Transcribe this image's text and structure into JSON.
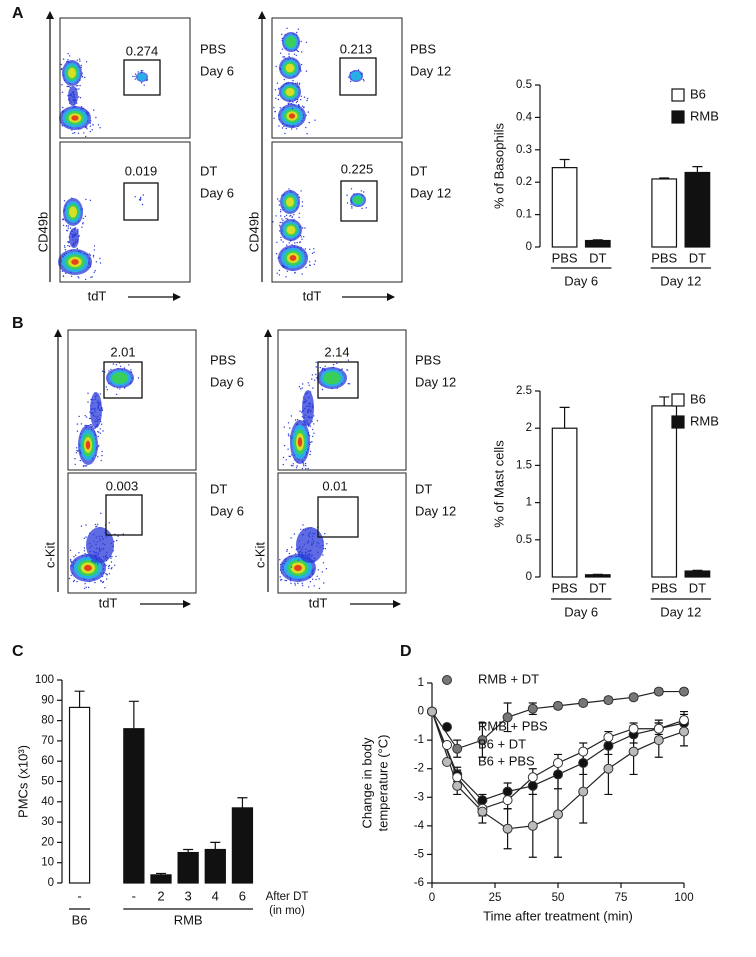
{
  "panel_labels": [
    "A",
    "B",
    "C",
    "D"
  ],
  "flow": {
    "x_label": "tdT",
    "y_labels": [
      "CD49b",
      "c-Kit"
    ],
    "plots": [
      {
        "gate": 0.274,
        "condition": "PBS",
        "day": "Day 6"
      },
      {
        "gate": 0.019,
        "condition": "DT",
        "day": "Day 6"
      },
      {
        "gate": 0.213,
        "condition": "PBS",
        "day": "Day 12"
      },
      {
        "gate": 0.225,
        "condition": "DT",
        "day": "Day 12"
      },
      {
        "gate": 2.01,
        "condition": "PBS",
        "day": "Day 6"
      },
      {
        "gate": 0.003,
        "condition": "DT",
        "day": "Day 6"
      },
      {
        "gate": 2.14,
        "condition": "PBS",
        "day": "Day 12"
      },
      {
        "gate": 0.01,
        "condition": "DT",
        "day": "Day 12"
      }
    ]
  },
  "chart_data": [
    {
      "type": "bar",
      "ylabel": "% of Basophils",
      "categories": [
        "PBS",
        "DT",
        null,
        "PBS",
        "DT"
      ],
      "groups": [
        "Day 6",
        "Day 12"
      ],
      "series": [
        {
          "name": "B6",
          "color": "#ffffff",
          "values": [
            0.245,
            null,
            null,
            0.21,
            null
          ],
          "errors": [
            0.025,
            null,
            null,
            0.003,
            null
          ]
        },
        {
          "name": "RMB",
          "color": "#111111",
          "values": [
            null,
            0.02,
            null,
            null,
            0.23
          ],
          "errors": [
            null,
            0.002,
            null,
            null,
            0.018
          ]
        }
      ],
      "ylim": [
        0,
        0.5
      ],
      "yticks": [
        0,
        0.1,
        0.2,
        0.3,
        0.4,
        0.5
      ]
    },
    {
      "type": "bar",
      "ylabel": "% of Mast cells",
      "categories": [
        "PBS",
        "DT",
        null,
        "PBS",
        "DT"
      ],
      "groups": [
        "Day 6",
        "Day 12"
      ],
      "series": [
        {
          "name": "B6",
          "color": "#ffffff",
          "values": [
            2.0,
            null,
            null,
            2.3,
            null
          ],
          "errors": [
            0.28,
            null,
            null,
            0.12,
            null
          ]
        },
        {
          "name": "RMB",
          "color": "#111111",
          "values": [
            null,
            0.03,
            null,
            null,
            0.08
          ],
          "errors": [
            null,
            0.005,
            null,
            null,
            0.01
          ]
        }
      ],
      "ylim": [
        0,
        2.5
      ],
      "yticks": [
        0,
        0.5,
        1,
        1.5,
        2,
        2.5
      ]
    },
    {
      "type": "bar",
      "ylabel": "PMCs (x10³)",
      "categories": [
        "-",
        null,
        "-",
        "2",
        "3",
        "4",
        "6"
      ],
      "groups": [
        "B6",
        "RMB"
      ],
      "values": [
        86.5,
        null,
        76,
        4,
        15,
        16.5,
        37
      ],
      "errors": [
        8,
        null,
        13.5,
        0.7,
        1.5,
        3.5,
        5
      ],
      "colors": [
        "#ffffff",
        null,
        "#111111",
        "#111111",
        "#111111",
        "#111111",
        "#111111"
      ],
      "annotation": [
        "After DT",
        "(in mo)"
      ],
      "ylim": [
        0,
        100
      ],
      "yticks": [
        0,
        10,
        20,
        30,
        40,
        50,
        60,
        70,
        80,
        90,
        100
      ]
    },
    {
      "type": "line",
      "xlabel": "Time after treatment (min)",
      "ylabel": [
        "Change in body",
        "temperature (°C)"
      ],
      "x": [
        0,
        10,
        20,
        30,
        40,
        50,
        60,
        70,
        80,
        90,
        100
      ],
      "series": [
        {
          "name": "RMB + DT",
          "color": "#777777",
          "values": [
            0,
            -1.3,
            -1.0,
            -0.2,
            0.1,
            0.2,
            0.3,
            0.4,
            0.5,
            0.7,
            0.7
          ],
          "errors": [
            0,
            0.3,
            0.6,
            0.5,
            0.2,
            0.1,
            0.1,
            0.1,
            0.1,
            0.1,
            0.1
          ]
        },
        {
          "name": "RMB + PBS",
          "color": "#111111",
          "values": [
            0,
            -2.2,
            -3.1,
            -2.8,
            -2.6,
            -2.2,
            -1.8,
            -1.2,
            -0.8,
            -0.6,
            -0.4
          ],
          "errors": [
            0,
            0.25,
            0.2,
            0.3,
            0.3,
            0.5,
            0.4,
            0.3,
            0.3,
            0.3,
            0.3
          ]
        },
        {
          "name": "B6 + DT",
          "color": "#ffffff",
          "values": [
            0,
            -2.3,
            -3.4,
            -3.1,
            -2.3,
            -1.8,
            -1.4,
            -0.9,
            -0.6,
            -0.6,
            -0.3
          ],
          "errors": [
            0,
            0.25,
            0.25,
            0.3,
            0.3,
            0.3,
            0.3,
            0.2,
            0.2,
            0.2,
            0.3
          ]
        },
        {
          "name": "B6 + PBS",
          "color": "#bbbbbb",
          "values": [
            0,
            -2.6,
            -3.5,
            -4.1,
            -4.0,
            -3.6,
            -2.8,
            -2.0,
            -1.4,
            -1.0,
            -0.7
          ],
          "errors": [
            0,
            0.3,
            0.4,
            0.7,
            1.1,
            1.5,
            1.1,
            0.9,
            0.8,
            0.6,
            0.5
          ]
        }
      ],
      "xlim": [
        0,
        100
      ],
      "xticks": [
        0,
        25,
        50,
        75,
        100
      ],
      "ylim": [
        -6,
        1
      ],
      "yticks": [
        -6,
        -5,
        -4,
        -3,
        -2,
        -1,
        0,
        1
      ]
    }
  ]
}
